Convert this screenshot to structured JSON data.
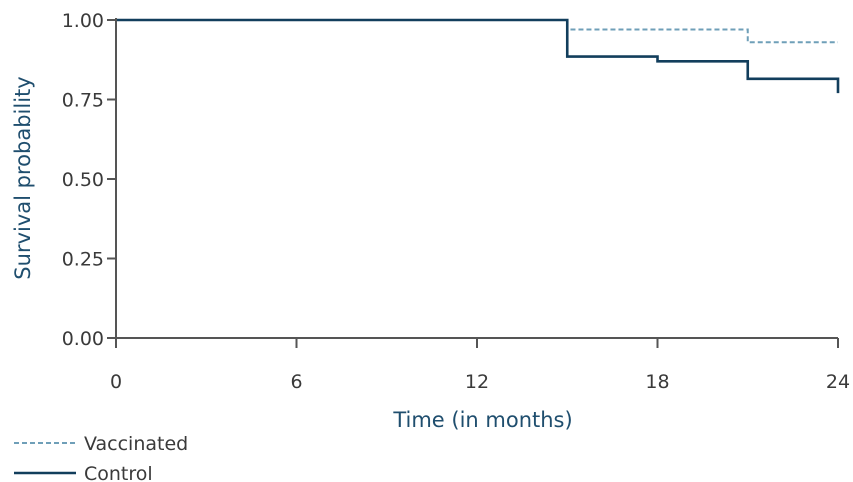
{
  "chart_data": {
    "type": "line",
    "subtype": "step",
    "xlabel": "Time (in months)",
    "ylabel": "Survival probability",
    "xlim": [
      0,
      24
    ],
    "ylim": [
      0,
      1
    ],
    "x_ticks": [
      0,
      6,
      12,
      18,
      24
    ],
    "x_tick_labels": [
      "0",
      "6",
      "12",
      "18",
      "24"
    ],
    "y_ticks": [
      0,
      0.25,
      0.5,
      0.75,
      1.0
    ],
    "y_tick_labels": [
      "0.00",
      "0.25",
      "0.50",
      "0.75",
      "1.00"
    ],
    "grid": false,
    "legend_position": "bottom-left",
    "series": [
      {
        "name": "Vaccinated",
        "style": "dashed",
        "color": "#6f9fb8",
        "x": [
          0,
          15,
          21,
          24
        ],
        "y": [
          1.0,
          0.97,
          0.93,
          0.93
        ]
      },
      {
        "name": "Control",
        "style": "solid",
        "color": "#123e5c",
        "x": [
          0,
          15,
          18,
          21,
          24,
          24
        ],
        "y": [
          1.0,
          0.885,
          0.87,
          0.815,
          0.81,
          0.77
        ]
      }
    ]
  }
}
